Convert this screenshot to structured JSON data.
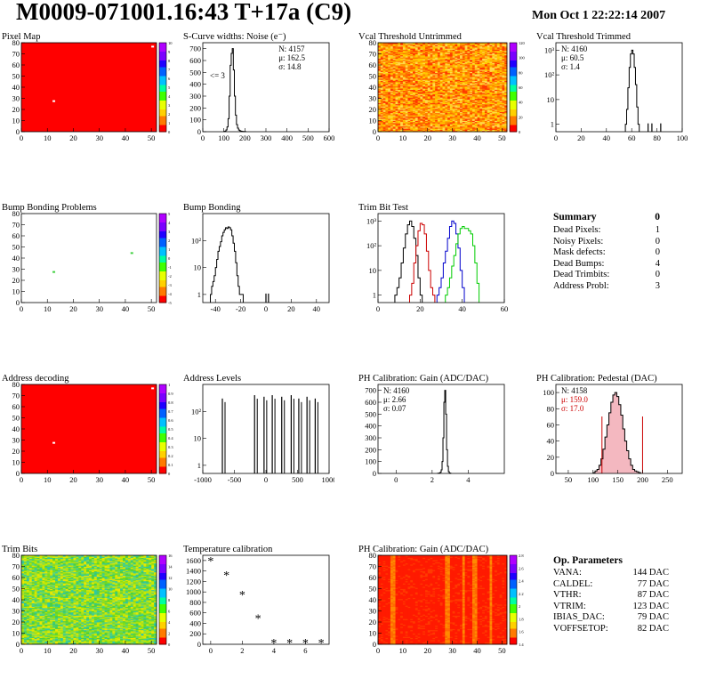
{
  "header": {
    "title": "M0009-071001.16:43 T+17a (C9)",
    "date": "Mon Oct  1 22:22:14 2007"
  },
  "summary": {
    "title": "Summary",
    "total": "0",
    "rows": [
      {
        "label": "Dead Pixels:",
        "value": "1"
      },
      {
        "label": "Noisy Pixels:",
        "value": "0"
      },
      {
        "label": "Mask defects:",
        "value": "0"
      },
      {
        "label": "Dead Bumps:",
        "value": "4"
      },
      {
        "label": "Dead Trimbits:",
        "value": "0"
      },
      {
        "label": "Address Probl:",
        "value": "3"
      }
    ]
  },
  "op_params": {
    "title": "Op. Parameters",
    "rows": [
      {
        "label": "VANA:",
        "value": "144 DAC"
      },
      {
        "label": "CALDEL:",
        "value": "77 DAC"
      },
      {
        "label": "VTHR:",
        "value": "87 DAC"
      },
      {
        "label": "VTRIM:",
        "value": "123 DAC"
      },
      {
        "label": "IBIAS_DAC:",
        "value": "79 DAC"
      },
      {
        "label": "VOFFSETOP:",
        "value": "82 DAC"
      }
    ]
  },
  "chart_data": [
    {
      "id": "pixel-map",
      "type": "heatmap",
      "title": "Pixel Map",
      "xlim": [
        0,
        52
      ],
      "ylim": [
        0,
        80
      ],
      "xticks": [
        "0",
        "10",
        "20",
        "30",
        "40",
        "50"
      ],
      "yticks": [
        "0",
        "10",
        "20",
        "30",
        "40",
        "50",
        "60",
        "70",
        "80"
      ],
      "zticks": [
        "0",
        "1",
        "2",
        "3",
        "4",
        "5",
        "6",
        "7",
        "8",
        "9",
        "10"
      ],
      "fill": "#ff0000",
      "specks": [
        {
          "x": 12.5,
          "y": 27.5,
          "color": "#ffffff"
        },
        {
          "x": 50.5,
          "y": 76.5,
          "color": "#ffffff"
        }
      ]
    },
    {
      "id": "scurve-noise",
      "type": "histogram",
      "title": "S-Curve widths: Noise (e⁻)",
      "xlim": [
        0,
        600
      ],
      "ylim": [
        0,
        750
      ],
      "xticks": [
        "0",
        "100",
        "200",
        "300",
        "400",
        "500",
        "600"
      ],
      "yticks": [
        "0",
        "100",
        "200",
        "300",
        "400",
        "500",
        "600",
        "700"
      ],
      "stats": [
        {
          "text": "N: 4157"
        },
        {
          "text": "μ: 162.5"
        },
        {
          "text": "σ: 14.8"
        }
      ],
      "annotation": "<= 3",
      "series": [
        {
          "color": "#000000",
          "x0": 100,
          "bin": 5,
          "values": [
            2,
            5,
            15,
            40,
            110,
            300,
            560,
            660,
            700,
            520,
            300,
            140,
            60,
            30,
            14,
            8,
            5,
            3,
            2,
            1,
            1
          ]
        }
      ]
    },
    {
      "id": "vcal-untrimmed",
      "type": "heatmap",
      "title": "Vcal Threshold Untrimmed",
      "xlim": [
        0,
        52
      ],
      "ylim": [
        0,
        80
      ],
      "xticks": [
        "0",
        "10",
        "20",
        "30",
        "40",
        "50"
      ],
      "yticks": [
        "0",
        "10",
        "20",
        "30",
        "40",
        "50",
        "60",
        "70",
        "80"
      ],
      "zticks": [
        "0",
        "20",
        "40",
        "60",
        "80",
        "100",
        "120"
      ],
      "palette": "warm",
      "seed": 11
    },
    {
      "id": "vcal-trimmed",
      "type": "histogram",
      "title": "Vcal Threshold Trimmed",
      "xlim": [
        0,
        100
      ],
      "log": true,
      "ylim": [
        0.5,
        2000
      ],
      "xticks": [
        "0",
        "20",
        "40",
        "60",
        "80",
        "100"
      ],
      "yticks": [
        "1",
        "10",
        "10²",
        "10³"
      ],
      "stats": [
        {
          "text": "N: 4160"
        },
        {
          "text": "μ: 60.5"
        },
        {
          "text": "σ:  1.4"
        }
      ],
      "series": [
        {
          "color": "#000000",
          "x0": 55,
          "bin": 1,
          "values": [
            1,
            4,
            30,
            200,
            700,
            1000,
            700,
            200,
            40,
            5,
            1
          ]
        }
      ],
      "spikes": [
        {
          "x": 73,
          "v": 1
        },
        {
          "x": 76,
          "v": 1
        },
        {
          "x": 83,
          "v": 1
        }
      ]
    },
    {
      "id": "bump-problems",
      "type": "heatmap",
      "title": "Bump Bonding Problems",
      "xlim": [
        0,
        52
      ],
      "ylim": [
        0,
        80
      ],
      "xticks": [
        "0",
        "10",
        "20",
        "30",
        "40",
        "50"
      ],
      "yticks": [
        "0",
        "10",
        "20",
        "30",
        "40",
        "50",
        "60",
        "70",
        "80"
      ],
      "zticks": [
        "-5",
        "-4",
        "-3",
        "-2",
        "-1",
        "0",
        "1",
        "2",
        "3",
        "4",
        "5"
      ],
      "fill": "#ffffff",
      "specks": [
        {
          "x": 12.5,
          "y": 27.5,
          "color": "#40d040"
        },
        {
          "x": 42.5,
          "y": 44.5,
          "color": "#40d040"
        }
      ]
    },
    {
      "id": "bump-bonding",
      "type": "histogram",
      "title": "Bump Bonding",
      "xlim": [
        -50,
        50
      ],
      "log": true,
      "ylim": [
        0.5,
        1000
      ],
      "xticks": [
        "-40",
        "-20",
        "0",
        "20",
        "40"
      ],
      "yticks": [
        "1",
        "10",
        "10²"
      ],
      "series": [
        {
          "color": "#000000",
          "x0": -44,
          "bin": 1,
          "values": [
            1,
            2,
            3,
            5,
            10,
            20,
            40,
            60,
            90,
            150,
            200,
            250,
            300,
            280,
            320,
            300,
            250,
            150,
            80,
            40,
            15,
            5,
            2,
            1,
            1,
            1
          ]
        }
      ],
      "spikes": [
        {
          "x": 0,
          "v": 1
        },
        {
          "x": 2,
          "v": 1
        }
      ]
    },
    {
      "id": "trim-bit-test",
      "type": "histogram",
      "title": "Trim Bit Test",
      "xlim": [
        0,
        60
      ],
      "log": true,
      "ylim": [
        0.5,
        2000
      ],
      "xticks": [
        "0",
        "20",
        "40",
        "60"
      ],
      "yticks": [
        "1",
        "10",
        "10²",
        "10³"
      ],
      "series": [
        {
          "color": "#000000",
          "x0": 8,
          "bin": 1,
          "values": [
            1,
            2,
            5,
            20,
            80,
            300,
            700,
            1000,
            600,
            200,
            40,
            5,
            1
          ]
        },
        {
          "color": "#cc0000",
          "x0": 15,
          "bin": 1,
          "values": [
            1,
            3,
            20,
            100,
            400,
            800,
            700,
            300,
            60,
            10,
            2,
            1
          ]
        },
        {
          "color": "#0000cc",
          "x0": 28,
          "bin": 1,
          "values": [
            1,
            2,
            5,
            20,
            60,
            200,
            600,
            1000,
            800,
            300,
            80,
            10,
            2
          ]
        },
        {
          "color": "#00cc00",
          "x0": 32,
          "bin": 1,
          "values": [
            1,
            2,
            5,
            15,
            40,
            120,
            300,
            500,
            600,
            500,
            500,
            400,
            300,
            100,
            20,
            3
          ]
        }
      ]
    },
    {
      "id": "address-decoding",
      "type": "heatmap",
      "title": "Address decoding",
      "xlim": [
        0,
        52
      ],
      "ylim": [
        0,
        80
      ],
      "xticks": [
        "0",
        "10",
        "20",
        "30",
        "40",
        "50"
      ],
      "yticks": [
        "0",
        "10",
        "20",
        "30",
        "40",
        "50",
        "60",
        "70",
        "80"
      ],
      "zticks": [
        "0",
        "0.1",
        "0.2",
        "0.3",
        "0.4",
        "0.5",
        "0.6",
        "0.7",
        "0.8",
        "0.9",
        "1"
      ],
      "fill": "#ff0000",
      "specks": [
        {
          "x": 12.5,
          "y": 27.5,
          "color": "#ffffff"
        },
        {
          "x": 50.5,
          "y": 76.5,
          "color": "#ffffff"
        }
      ]
    },
    {
      "id": "address-levels",
      "type": "histogram",
      "title": "Address Levels",
      "xlim": [
        -1000,
        1000
      ],
      "log": true,
      "ylim": [
        0.5,
        1000
      ],
      "xticks": [
        "-1000",
        "-500",
        "0",
        "500",
        "1000"
      ],
      "yticks": [
        "1",
        "10",
        "10²"
      ],
      "spikes": [
        {
          "x": -690,
          "v": 300
        },
        {
          "x": -180,
          "v": 400
        },
        {
          "x": -30,
          "v": 350
        },
        {
          "x": 100,
          "v": 400
        },
        {
          "x": 250,
          "v": 350
        },
        {
          "x": 400,
          "v": 400
        },
        {
          "x": 520,
          "v": 300
        },
        {
          "x": 650,
          "v": 350
        },
        {
          "x": 780,
          "v": 300
        }
      ]
    },
    {
      "id": "ph-gain",
      "type": "histogram",
      "title": "PH Calibration: Gain (ADC/DAC)",
      "xlim": [
        -1,
        6
      ],
      "ylim": [
        0,
        750
      ],
      "xticks": [
        "0",
        "2",
        "4"
      ],
      "yticks": [
        "0",
        "100",
        "200",
        "300",
        "400",
        "500",
        "600",
        "700"
      ],
      "stats": [
        {
          "text": "N: 4160"
        },
        {
          "text": "μ: 2.66"
        },
        {
          "text": "σ: 0.07"
        }
      ],
      "series": [
        {
          "color": "#000000",
          "x0": 2.3,
          "bin": 0.05,
          "values": [
            1,
            2,
            4,
            10,
            30,
            100,
            300,
            600,
            700,
            500,
            200,
            60,
            15,
            4,
            1
          ]
        }
      ]
    },
    {
      "id": "ph-pedestal",
      "type": "histogram",
      "title": "PH Calibration: Pedestal (DAC)",
      "xlim": [
        25,
        280
      ],
      "ylim": [
        0,
        110
      ],
      "xticks": [
        "50",
        "100",
        "150",
        "200",
        "250"
      ],
      "yticks": [
        "0",
        "20",
        "40",
        "60",
        "80",
        "100"
      ],
      "stats": [
        {
          "text": "N: 4158",
          "color": "#000000"
        },
        {
          "text": "μ: 159.0",
          "color": "#cc0000"
        },
        {
          "text": "σ: 17.0",
          "color": "#cc0000"
        }
      ],
      "series": [
        {
          "color": "#000000",
          "x0": 100,
          "bin": 4,
          "values": [
            1,
            3,
            5,
            10,
            18,
            30,
            45,
            60,
            75,
            88,
            97,
            100,
            95,
            85,
            72,
            55,
            40,
            28,
            18,
            10,
            5,
            3,
            2,
            1
          ]
        }
      ],
      "markers": [
        {
          "x": 118,
          "color": "#cc0000"
        },
        {
          "x": 200,
          "color": "#cc0000"
        }
      ]
    },
    {
      "id": "trim-bits",
      "type": "heatmap",
      "title": "Trim Bits",
      "xlim": [
        0,
        52
      ],
      "ylim": [
        0,
        80
      ],
      "xticks": [
        "0",
        "10",
        "20",
        "30",
        "40",
        "50"
      ],
      "yticks": [
        "0",
        "10",
        "20",
        "30",
        "40",
        "50",
        "60",
        "70",
        "80"
      ],
      "zticks": [
        "0",
        "2",
        "4",
        "6",
        "8",
        "10",
        "12",
        "14",
        "16"
      ],
      "palette": "greenish",
      "seed": 7
    },
    {
      "id": "temperature-calibration",
      "type": "scatter",
      "title": "Temperature calibration",
      "xlim": [
        -0.5,
        7.5
      ],
      "ylim": [
        0,
        1700
      ],
      "xticks": [
        "0",
        "2",
        "4",
        "6"
      ],
      "yticks": [
        "0",
        "200",
        "400",
        "600",
        "800",
        "1000",
        "1200",
        "1400",
        "1600"
      ],
      "x": [
        0,
        1,
        2,
        3,
        4,
        5,
        6,
        7
      ],
      "y": [
        1600,
        1330,
        950,
        500,
        35,
        35,
        35,
        35
      ]
    },
    {
      "id": "ph-gain-map",
      "type": "heatmap",
      "title": "PH Calibration: Gain (ADC/DAC)",
      "xlim": [
        0,
        52
      ],
      "ylim": [
        0,
        80
      ],
      "xticks": [
        "0",
        "10",
        "20",
        "30",
        "40",
        "50"
      ],
      "yticks": [
        "0",
        "10",
        "20",
        "30",
        "40",
        "50",
        "60",
        "70",
        "80"
      ],
      "zticks": [
        "1.4",
        "1.6",
        "1.8",
        "2",
        "2.2",
        "2.4",
        "2.6",
        "2.8"
      ],
      "palette": "gainmap",
      "seed": 3
    }
  ]
}
